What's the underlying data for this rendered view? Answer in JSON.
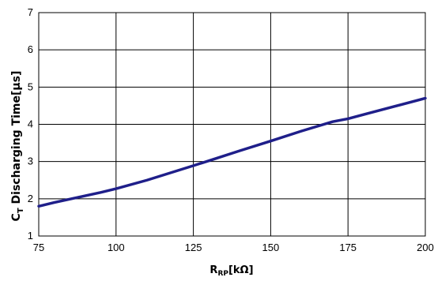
{
  "chart_data": {
    "type": "line",
    "title": "",
    "xlabel": {
      "main": "R",
      "sub": "RP",
      "unit": "[kΩ]"
    },
    "ylabel": {
      "main": "C",
      "sub": "T",
      "rest": " Discharging Time[µs]"
    },
    "xlim": [
      75,
      200
    ],
    "ylim": [
      1,
      7
    ],
    "xticks": [
      75,
      100,
      125,
      150,
      175,
      200
    ],
    "yticks": [
      1,
      2,
      3,
      4,
      5,
      6,
      7
    ],
    "grid": true,
    "legend": "none",
    "series": [
      {
        "color": "#1f1f8a",
        "x": [
          75,
          80,
          85,
          90,
          95,
          100,
          110,
          120,
          125,
          130,
          140,
          150,
          160,
          170,
          175,
          180,
          190,
          200
        ],
        "y": [
          1.8,
          1.9,
          1.99,
          2.08,
          2.17,
          2.27,
          2.5,
          2.76,
          2.89,
          3.02,
          3.29,
          3.55,
          3.82,
          4.07,
          4.15,
          4.26,
          4.48,
          4.7
        ]
      }
    ]
  }
}
